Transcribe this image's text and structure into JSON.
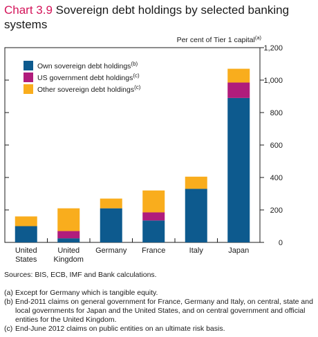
{
  "title": {
    "number": "Chart 3.9",
    "text": "Sovereign debt holdings by selected banking systems"
  },
  "unit": {
    "text": "Per cent of Tier 1 capital",
    "note": "(a)"
  },
  "chart_data": {
    "type": "bar",
    "stacked": true,
    "title": "Chart 3.9 Sovereign debt holdings by selected banking systems",
    "ylabel": "Per cent of Tier 1 capital",
    "ylim": [
      0,
      1200
    ],
    "yticks": [
      0,
      200,
      400,
      600,
      800,
      1000,
      1200
    ],
    "ytick_labels": [
      "0",
      "200",
      "400",
      "600",
      "800",
      "1,000",
      "1,200"
    ],
    "y_axis_side": "right",
    "grid": false,
    "legend_position": "top-left",
    "categories": [
      "United States",
      "United Kingdom",
      "Germany",
      "France",
      "Italy",
      "Japan"
    ],
    "category_lines": [
      [
        "United",
        "States"
      ],
      [
        "United",
        "Kingdom"
      ],
      [
        "Germany"
      ],
      [
        "France"
      ],
      [
        "Italy"
      ],
      [
        "Japan"
      ]
    ],
    "series": [
      {
        "name": "Own sovereign debt holdings",
        "note": "(b)",
        "color": "#0d5a8e",
        "values": [
          100,
          25,
          210,
          135,
          330,
          890
        ]
      },
      {
        "name": "US government debt holdings",
        "note": "(c)",
        "color": "#b01c7c",
        "values": [
          0,
          45,
          0,
          50,
          0,
          95
        ]
      },
      {
        "name": "Other sovereign debt holdings",
        "note": "(c)",
        "color": "#f9ad1d",
        "values": [
          60,
          140,
          60,
          135,
          75,
          85
        ]
      }
    ]
  },
  "sources": "Sources:  BIS, ECB, IMF and Bank calculations.",
  "footnotes": [
    {
      "key": "(a)",
      "text": "Except for Germany which is tangible equity."
    },
    {
      "key": "(b)",
      "text": "End-2011 claims on general government for France, Germany and Italy, on central, state and local governments for Japan and the United States, and on central government and official entities for the United Kingdom."
    },
    {
      "key": "(c)",
      "text": "End-June 2012 claims on public entities on an ultimate risk basis."
    }
  ],
  "colors": {
    "title_number": "#d4145a",
    "axis": "#1a1a1a"
  }
}
